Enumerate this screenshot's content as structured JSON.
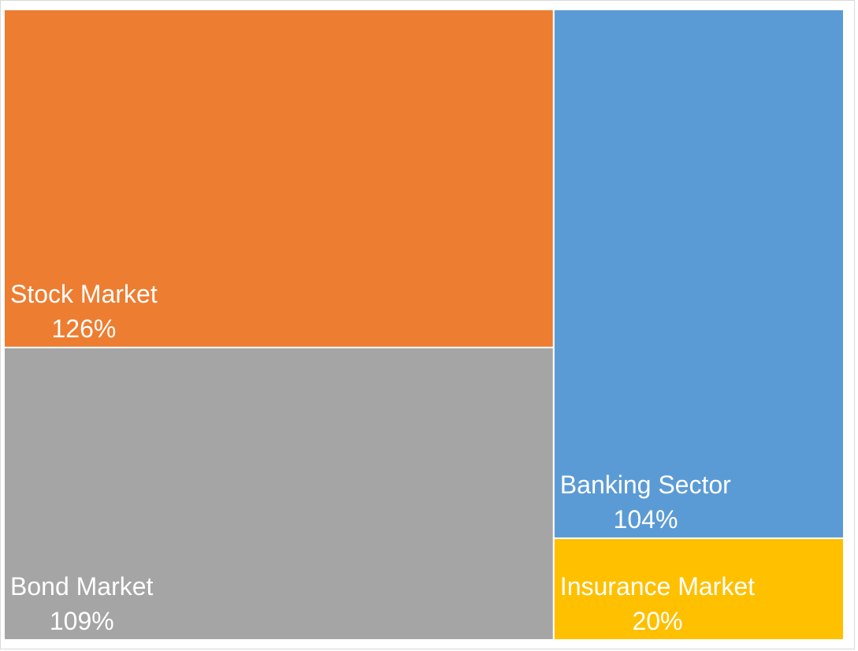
{
  "chart_data": {
    "type": "treemap",
    "categories": [
      "Stock Market",
      "Bond Market",
      "Banking Sector",
      "Insurance Market"
    ],
    "values": [
      126,
      109,
      104,
      20
    ],
    "value_labels": [
      "126%",
      "109%",
      "104%",
      "20%"
    ],
    "colors": [
      "#ED7D31",
      "#A5A5A5",
      "#5B9BD5",
      "#FFC000"
    ]
  }
}
